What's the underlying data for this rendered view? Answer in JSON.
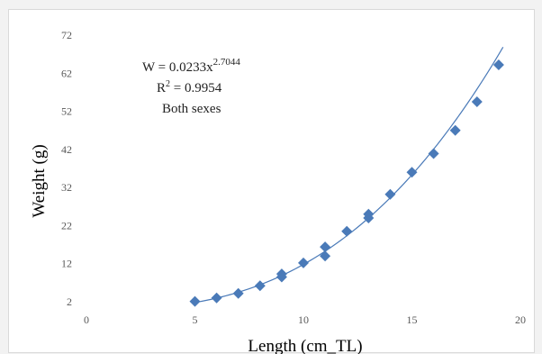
{
  "chart_data": {
    "type": "scatter",
    "xlabel": "Length (cm_TL)",
    "ylabel": "Weight (g)",
    "xlim": [
      0,
      20
    ],
    "ylim": [
      2,
      72
    ],
    "x_ticks": [
      "0",
      "5",
      "10",
      "15",
      "20"
    ],
    "y_ticks": [
      "2",
      "12",
      "22",
      "32",
      "42",
      "52",
      "62",
      "72"
    ],
    "x_tick_values": [
      0,
      5,
      10,
      15,
      20
    ],
    "y_tick_values": [
      2,
      12,
      22,
      32,
      42,
      52,
      62,
      72
    ],
    "grid": false,
    "legend": "none",
    "marker_color": "#4a7ab8",
    "trend_color": "#4a7ab8",
    "series": [
      {
        "x": [
          5,
          6,
          7,
          8,
          9,
          9,
          10,
          11,
          11,
          12,
          13,
          13,
          14,
          15,
          16,
          17,
          18,
          19
        ],
        "y": [
          2.1,
          3.0,
          4.2,
          6.2,
          8.5,
          9.3,
          12.2,
          14.0,
          16.4,
          20.5,
          24.0,
          25.0,
          30.2,
          36.0,
          40.9,
          47.0,
          54.5,
          64.2
        ]
      }
    ],
    "trendline": {
      "type": "power",
      "coefficient": 0.0233,
      "exponent": 2.7044,
      "x_range": [
        5,
        19.2
      ]
    },
    "annotation": {
      "equation_prefix": "W = 0.0233x",
      "equation_exponent": "2.7044",
      "r2_prefix": "R",
      "r2_exponent": "2",
      "r2_value": " = 0.9954",
      "group": "Both sexes"
    }
  }
}
